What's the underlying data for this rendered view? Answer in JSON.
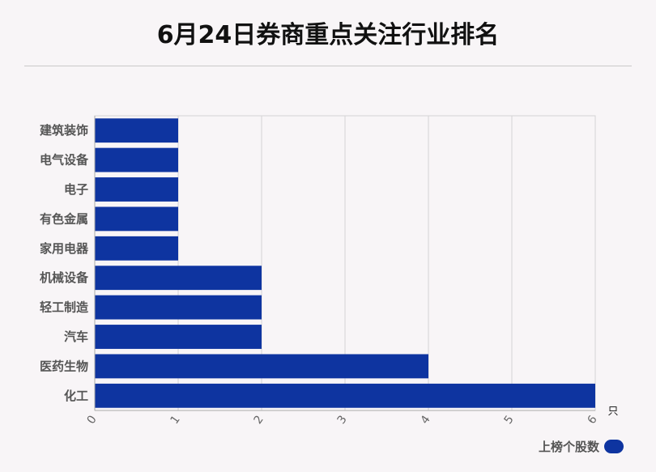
{
  "title": "6月24日券商重点关注行业排名",
  "colors": {
    "bar": "#0e34a0",
    "grid": "#d4d4d4",
    "axis": "#aaaaaa",
    "label": "#555555"
  },
  "chart_data": {
    "type": "bar",
    "orientation": "horizontal",
    "title": "6月24日券商重点关注行业排名",
    "categories": [
      "建筑装饰",
      "电气设备",
      "电子",
      "有色金属",
      "家用电器",
      "机械设备",
      "轻工制造",
      "汽车",
      "医药生物",
      "化工"
    ],
    "series": [
      {
        "name": "上榜个股数",
        "values": [
          1,
          1,
          1,
          1,
          1,
          2,
          2,
          2,
          4,
          6
        ]
      }
    ],
    "xticks": [
      "0",
      "1",
      "2",
      "3",
      "4",
      "5",
      "6"
    ],
    "xlim": [
      0,
      6
    ],
    "unit": "只",
    "grid": "vertical",
    "legend_position": "bottom-right"
  }
}
